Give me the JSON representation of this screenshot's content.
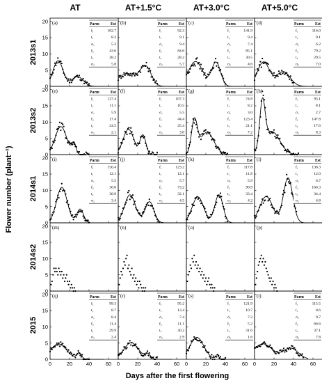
{
  "figure": {
    "column_headers": [
      "AT",
      "AT+1.5°C",
      "AT+3.0°C",
      "AT+5.0°C"
    ],
    "row_headers": [
      "2013s1",
      "2013s2",
      "2014s1",
      "2014s2",
      "2015"
    ],
    "ylabel": "Flower number (plant⁻¹)",
    "xlabel": "Days after the first flowering",
    "table_header": [
      "Parm",
      "Est"
    ]
  },
  "chart_data": {
    "type": "scatter",
    "xlim": [
      0,
      70
    ],
    "ylim": [
      0,
      21
    ],
    "xticks": [
      0,
      20,
      40,
      60
    ],
    "yticks": [
      0,
      5,
      10,
      15,
      20
    ],
    "grid": false,
    "panels": [
      {
        "label": "(a)",
        "row": 0,
        "col": 0,
        "params": [
          [
            "f₁",
            "102.7"
          ],
          [
            "t₁",
            "8.2"
          ],
          [
            "σ₁",
            "5.2"
          ],
          [
            "f₂",
            "43.6"
          ],
          [
            "t₂",
            "28.2"
          ],
          [
            "σ₂",
            "5.8"
          ]
        ],
        "c1": [
          102.7,
          8.2,
          5.2
        ],
        "c2": [
          43.6,
          28.2,
          5.8
        ],
        "xmax": 40
      },
      {
        "label": "(b)",
        "row": 0,
        "col": 1,
        "params": [
          [
            "f₁",
            "92.3"
          ],
          [
            "t₁",
            "9.1"
          ],
          [
            "σ₁",
            "9.4"
          ],
          [
            "f₂",
            "84.6"
          ],
          [
            "t₂",
            "28.2"
          ],
          [
            "σ₂",
            "5.7"
          ]
        ],
        "c1": [
          92.3,
          9.1,
          9.4
        ],
        "c2": [
          84.6,
          28.2,
          5.7
        ],
        "xmax": 40
      },
      {
        "label": "(c)",
        "row": 0,
        "col": 2,
        "params": [
          [
            "f₁",
            "141.9"
          ],
          [
            "t₁",
            "9.4"
          ],
          [
            "σ₁",
            "7.4"
          ],
          [
            "f₂",
            "85.1"
          ],
          [
            "t₂",
            "30.5"
          ],
          [
            "σ₂",
            "4.6"
          ]
        ],
        "c1": [
          141.9,
          9.4,
          7.4
        ],
        "c2": [
          85.1,
          30.5,
          4.6
        ],
        "xmax": 40
      },
      {
        "label": "(d)",
        "row": 0,
        "col": 3,
        "params": [
          [
            "f₁",
            "116.0"
          ],
          [
            "t₁",
            "9.1"
          ],
          [
            "σ₁",
            "6.2"
          ],
          [
            "f₂",
            "79.2"
          ],
          [
            "t₂",
            "29.5"
          ],
          [
            "σ₂",
            "7.0"
          ]
        ],
        "c1": [
          116.0,
          9.1,
          6.2
        ],
        "c2": [
          79.2,
          29.5,
          7.0
        ],
        "xmax": 40
      },
      {
        "label": "(e)",
        "row": 1,
        "col": 0,
        "params": [
          [
            "f₁",
            "127.4"
          ],
          [
            "t₁",
            "11.1"
          ],
          [
            "σ₁",
            "5.9"
          ],
          [
            "f₂",
            "17.4"
          ],
          [
            "t₂",
            "24.5"
          ],
          [
            "σ₂",
            "2.1"
          ]
        ],
        "c1": [
          127.4,
          11.1,
          5.9
        ],
        "c2": [
          17.4,
          24.5,
          2.1
        ],
        "xmax": 40
      },
      {
        "label": "(f)",
        "row": 1,
        "col": 1,
        "params": [
          [
            "f₁",
            "107.3"
          ],
          [
            "t₁",
            "10.5"
          ],
          [
            "σ₁",
            "5.5"
          ],
          [
            "f₂",
            "44.4"
          ],
          [
            "t₂",
            "25.4"
          ],
          [
            "σ₂",
            "3.0"
          ]
        ],
        "c1": [
          107.3,
          10.5,
          5.5
        ],
        "c2": [
          44.4,
          25.4,
          3.0
        ],
        "xmax": 40
      },
      {
        "label": "(g)",
        "row": 1,
        "col": 2,
        "params": [
          [
            "f₁",
            "74.8"
          ],
          [
            "t₁",
            "8.2"
          ],
          [
            "σ₁",
            "3.0"
          ],
          [
            "f₂",
            "123.4"
          ],
          [
            "t₂",
            "21.1"
          ],
          [
            "σ₂",
            "7.2"
          ]
        ],
        "c1": [
          74.8,
          8.2,
          3.0
        ],
        "c2": [
          123.4,
          21.1,
          7.2
        ],
        "xmax": 42
      },
      {
        "label": "(h)",
        "row": 1,
        "col": 3,
        "params": [
          [
            "f₁",
            "93.1"
          ],
          [
            "t₁",
            "8.1"
          ],
          [
            "σ₁",
            "2.7"
          ],
          [
            "f₂",
            "147.8"
          ],
          [
            "t₂",
            "17.6"
          ],
          [
            "σ₂",
            "8.3"
          ]
        ],
        "c1": [
          93.1,
          8.1,
          2.7
        ],
        "c2": [
          147.8,
          17.6,
          8.3
        ],
        "xmax": 45
      },
      {
        "label": "(i)",
        "row": 2,
        "col": 0,
        "params": [
          [
            "f₁",
            "150.4"
          ],
          [
            "t₁",
            "12.1"
          ],
          [
            "σ₁",
            "5.5"
          ],
          [
            "f₂",
            "36.0"
          ],
          [
            "t₂",
            "30.9"
          ],
          [
            "σ₂",
            "3.4"
          ]
        ],
        "c1": [
          150.4,
          12.1,
          5.5
        ],
        "c2": [
          36.0,
          30.9,
          3.4
        ],
        "xmax": 40
      },
      {
        "label": "(j)",
        "row": 2,
        "col": 1,
        "params": [
          [
            "f₁",
            "123.2"
          ],
          [
            "t₁",
            "12.1"
          ],
          [
            "σ₁",
            "5.7"
          ],
          [
            "f₂",
            "73.2"
          ],
          [
            "t₂",
            "32.1"
          ],
          [
            "σ₂",
            "4.5"
          ]
        ],
        "c1": [
          123.2,
          12.1,
          5.7
        ],
        "c2": [
          73.2,
          32.1,
          4.5
        ],
        "xmax": 42
      },
      {
        "label": "(k)",
        "row": 2,
        "col": 2,
        "params": [
          [
            "f₁",
            "117.8"
          ],
          [
            "t₁",
            "11.8"
          ],
          [
            "σ₁",
            "5.9"
          ],
          [
            "f₂",
            "90.9"
          ],
          [
            "t₂",
            "33.4"
          ],
          [
            "σ₂",
            "4.2"
          ]
        ],
        "c1": [
          117.8,
          11.8,
          5.9
        ],
        "c2": [
          90.9,
          33.4,
          4.2
        ],
        "xmax": 42
      },
      {
        "label": "(l)",
        "row": 2,
        "col": 3,
        "params": [
          [
            "f₁",
            "136.3"
          ],
          [
            "t₁",
            "12.0"
          ],
          [
            "σ₁",
            "6.7"
          ],
          [
            "f₂",
            "166.3"
          ],
          [
            "t₂",
            "34.4"
          ],
          [
            "σ₂",
            "4.8"
          ]
        ],
        "c1": [
          136.3,
          12.0,
          6.7
        ],
        "c2": [
          166.3,
          34.4,
          4.8
        ],
        "xmax": 43
      },
      {
        "label": "(m)",
        "row": 3,
        "col": 0,
        "params": [],
        "c1": null,
        "c2": null,
        "points": [
          [
            1,
            2
          ],
          [
            2,
            3
          ],
          [
            3,
            5
          ],
          [
            4,
            7
          ],
          [
            5,
            6
          ],
          [
            6,
            7
          ],
          [
            7,
            6
          ],
          [
            8,
            5
          ],
          [
            9,
            7
          ],
          [
            10,
            6
          ],
          [
            11,
            5
          ],
          [
            12,
            6
          ],
          [
            13,
            4
          ],
          [
            14,
            5
          ],
          [
            15,
            3
          ],
          [
            16,
            4
          ],
          [
            17,
            5
          ],
          [
            18,
            3
          ],
          [
            19,
            2
          ],
          [
            20,
            3
          ],
          [
            21,
            1
          ],
          [
            22,
            2
          ],
          [
            23,
            1
          ],
          [
            24,
            0
          ],
          [
            25,
            1
          ],
          [
            26,
            0
          ]
        ]
      },
      {
        "label": "(n)",
        "row": 3,
        "col": 1,
        "params": [],
        "c1": null,
        "c2": null,
        "points": [
          [
            1,
            2
          ],
          [
            2,
            4
          ],
          [
            3,
            6
          ],
          [
            4,
            5
          ],
          [
            5,
            7
          ],
          [
            6,
            9
          ],
          [
            7,
            8
          ],
          [
            8,
            10
          ],
          [
            9,
            11
          ],
          [
            10,
            7
          ],
          [
            11,
            8
          ],
          [
            12,
            6
          ],
          [
            13,
            5
          ],
          [
            14,
            7
          ],
          [
            15,
            4
          ],
          [
            16,
            5
          ],
          [
            17,
            3
          ],
          [
            18,
            4
          ],
          [
            19,
            2
          ],
          [
            20,
            3
          ],
          [
            21,
            1
          ],
          [
            22,
            3
          ],
          [
            23,
            2
          ],
          [
            24,
            1
          ],
          [
            25,
            0
          ],
          [
            26,
            1
          ],
          [
            27,
            0
          ],
          [
            28,
            1
          ]
        ]
      },
      {
        "label": "(o)",
        "row": 3,
        "col": 2,
        "params": [],
        "c1": null,
        "c2": null,
        "points": [
          [
            1,
            3
          ],
          [
            2,
            5
          ],
          [
            3,
            6
          ],
          [
            4,
            8
          ],
          [
            5,
            7
          ],
          [
            6,
            10
          ],
          [
            7,
            9
          ],
          [
            8,
            11
          ],
          [
            9,
            8
          ],
          [
            10,
            9
          ],
          [
            11,
            7
          ],
          [
            12,
            8
          ],
          [
            13,
            6
          ],
          [
            14,
            7
          ],
          [
            15,
            5
          ],
          [
            16,
            6
          ],
          [
            17,
            4
          ],
          [
            18,
            5
          ],
          [
            19,
            3
          ],
          [
            20,
            4
          ],
          [
            21,
            2
          ],
          [
            22,
            3
          ],
          [
            23,
            4
          ],
          [
            24,
            2
          ],
          [
            25,
            1
          ],
          [
            26,
            2
          ],
          [
            27,
            1
          ],
          [
            28,
            0
          ],
          [
            29,
            1
          ]
        ]
      },
      {
        "label": "(p)",
        "row": 3,
        "col": 3,
        "params": [],
        "c1": null,
        "c2": null,
        "points": [
          [
            1,
            2
          ],
          [
            2,
            4
          ],
          [
            3,
            6
          ],
          [
            4,
            8
          ],
          [
            5,
            9
          ],
          [
            6,
            10
          ],
          [
            7,
            11
          ],
          [
            8,
            9
          ],
          [
            9,
            10
          ],
          [
            10,
            8
          ],
          [
            11,
            9
          ],
          [
            12,
            7
          ],
          [
            13,
            6
          ],
          [
            14,
            5
          ],
          [
            15,
            4
          ],
          [
            16,
            3
          ],
          [
            17,
            4
          ],
          [
            18,
            2
          ],
          [
            19,
            3
          ],
          [
            20,
            1
          ],
          [
            21,
            2
          ],
          [
            22,
            1
          ],
          [
            23,
            0
          ]
        ]
      },
      {
        "label": "(q)",
        "row": 4,
        "col": 0,
        "params": [
          [
            "f₁",
            "99.3"
          ],
          [
            "t₁",
            "8.7"
          ],
          [
            "σ₁",
            "8.4"
          ],
          [
            "f₂",
            "11.4"
          ],
          [
            "t₂",
            "29.9"
          ],
          [
            "σ₂",
            "2.4"
          ]
        ],
        "c1": [
          99.3,
          8.7,
          8.4
        ],
        "c2": [
          11.4,
          29.9,
          2.4
        ],
        "xmax": 40
      },
      {
        "label": "(r)",
        "row": 4,
        "col": 1,
        "params": [
          [
            "f₁",
            "95.2"
          ],
          [
            "t₁",
            "13.4"
          ],
          [
            "σ₁",
            "7.4"
          ],
          [
            "f₂",
            "11.1"
          ],
          [
            "t₂",
            "30.2"
          ],
          [
            "σ₂",
            "2.9"
          ]
        ],
        "c1": [
          95.2,
          13.4,
          7.4
        ],
        "c2": [
          11.1,
          30.2,
          2.9
        ],
        "xmax": 40
      },
      {
        "label": "(s)",
        "row": 4,
        "col": 2,
        "params": [
          [
            "f₁",
            "121.9"
          ],
          [
            "t₁",
            "10.7"
          ],
          [
            "σ₁",
            "7.2"
          ],
          [
            "f₂",
            "5.2"
          ],
          [
            "t₂",
            "31.6"
          ],
          [
            "σ₂",
            "1.6"
          ]
        ],
        "c1": [
          121.9,
          10.7,
          7.2
        ],
        "c2": [
          5.2,
          31.6,
          1.6
        ],
        "xmax": 40
      },
      {
        "label": "(t)",
        "row": 4,
        "col": 3,
        "params": [
          [
            "f₁",
            "115.5"
          ],
          [
            "t₁",
            "8.6"
          ],
          [
            "σ₁",
            "9.7"
          ],
          [
            "f₂",
            "66.6"
          ],
          [
            "t₂",
            "37.1"
          ],
          [
            "σ₂",
            "7.8"
          ]
        ],
        "c1": [
          115.5,
          8.6,
          9.7
        ],
        "c2": [
          66.6,
          37.1,
          7.8
        ],
        "xmax": 50
      }
    ]
  }
}
